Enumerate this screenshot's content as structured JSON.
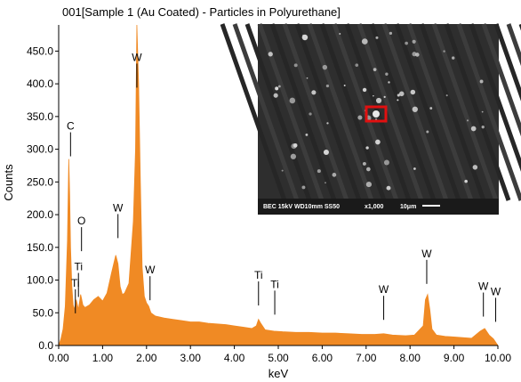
{
  "title": "001[Sample 1 (Au Coated) - Particles in Polyurethane]",
  "chart_data": {
    "type": "area",
    "title": "001[Sample 1 (Au Coated) - Particles in Polyurethane]",
    "xlabel": "keV",
    "ylabel": "Counts",
    "xlim": [
      0.0,
      10.0
    ],
    "ylim": [
      0.0,
      490.0
    ],
    "x_ticks": [
      "0.00",
      "1.00",
      "2.00",
      "3.00",
      "4.00",
      "5.00",
      "6.00",
      "7.00",
      "8.00",
      "9.00",
      "10.00"
    ],
    "y_ticks": [
      "0.0",
      "50.0",
      "100.0",
      "150.0",
      "200.0",
      "250.0",
      "300.0",
      "350.0",
      "400.0",
      "450.0"
    ],
    "y_tick_values": [
      0,
      50,
      100,
      150,
      200,
      250,
      300,
      350,
      400,
      450
    ],
    "series_color": "#F08A24",
    "series": [
      {
        "x": [
          0.0,
          0.05,
          0.1,
          0.15,
          0.2,
          0.23,
          0.25,
          0.27,
          0.3,
          0.33,
          0.36,
          0.4,
          0.45,
          0.5,
          0.52,
          0.55,
          0.6,
          0.7,
          0.8,
          0.9,
          1.0,
          1.1,
          1.2,
          1.3,
          1.35,
          1.4,
          1.45,
          1.5,
          1.6,
          1.7,
          1.75,
          1.78,
          1.82,
          1.86,
          1.9,
          1.95,
          2.0,
          2.05,
          2.1,
          2.2,
          2.4,
          2.6,
          2.8,
          3.0,
          3.2,
          3.4,
          3.6,
          3.8,
          4.0,
          4.2,
          4.4,
          4.5,
          4.55,
          4.6,
          4.7,
          4.9,
          5.1,
          5.4,
          5.7,
          6.0,
          6.3,
          6.6,
          6.9,
          7.2,
          7.4,
          7.6,
          7.9,
          8.1,
          8.3,
          8.35,
          8.4,
          8.45,
          8.5,
          8.6,
          8.8,
          9.0,
          9.2,
          9.4,
          9.6,
          9.7,
          9.8,
          9.9,
          10.0
        ],
        "y": [
          0,
          10,
          25,
          60,
          160,
          285,
          230,
          150,
          90,
          62,
          55,
          70,
          55,
          78,
          72,
          62,
          58,
          62,
          70,
          75,
          68,
          80,
          110,
          138,
          125,
          90,
          78,
          80,
          95,
          190,
          300,
          490,
          400,
          250,
          120,
          75,
          65,
          60,
          50,
          45,
          42,
          40,
          38,
          36,
          36,
          34,
          33,
          32,
          30,
          28,
          26,
          30,
          40,
          34,
          24,
          22,
          21,
          20,
          20,
          19,
          19,
          18,
          17,
          17,
          18,
          16,
          15,
          16,
          30,
          70,
          78,
          55,
          25,
          16,
          14,
          13,
          12,
          11,
          22,
          26,
          16,
          10,
          0
        ]
      }
    ],
    "peak_labels": [
      {
        "text": "C",
        "x": 0.27,
        "y": 330
      },
      {
        "text": "W",
        "x": 1.78,
        "y": 435
      },
      {
        "text": "O",
        "x": 0.52,
        "y": 185
      },
      {
        "text": "W",
        "x": 1.35,
        "y": 205
      },
      {
        "text": "Ti",
        "x": 0.45,
        "y": 115
      },
      {
        "text": "Ti",
        "x": 0.38,
        "y": 90
      },
      {
        "text": "W",
        "x": 2.08,
        "y": 110
      },
      {
        "text": "Ti",
        "x": 4.55,
        "y": 102
      },
      {
        "text": "Ti",
        "x": 4.92,
        "y": 88
      },
      {
        "text": "W",
        "x": 7.4,
        "y": 80
      },
      {
        "text": "W",
        "x": 8.38,
        "y": 135
      },
      {
        "text": "W",
        "x": 9.67,
        "y": 85
      },
      {
        "text": "W",
        "x": 9.95,
        "y": 77
      }
    ],
    "inset": {
      "caption_left": "BEC 15kV  WD10mm SS50",
      "caption_mid": "x1,000",
      "caption_right": "10μm"
    }
  }
}
